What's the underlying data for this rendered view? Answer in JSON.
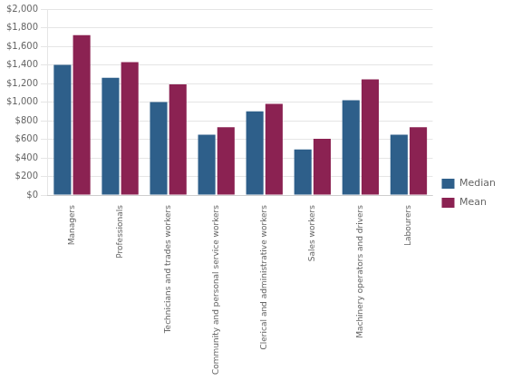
{
  "chart_data": {
    "type": "bar",
    "categories": [
      "Managers",
      "Professionals",
      "Technicians and trades workers",
      "Community and personal service workers",
      "Clerical and administrative workers",
      "Sales workers",
      "Machinery operators and drivers",
      "Labourers"
    ],
    "series": [
      {
        "name": "Median",
        "color": "#2E5F8A",
        "values": [
          1400,
          1260,
          1000,
          650,
          900,
          490,
          1020,
          650
        ]
      },
      {
        "name": "Mean",
        "color": "#8B2252",
        "values": [
          1720,
          1430,
          1190,
          730,
          980,
          605,
          1245,
          730
        ]
      }
    ],
    "ylim": [
      0,
      2000
    ],
    "yticks": [
      {
        "value": 0,
        "label": "$0"
      },
      {
        "value": 200,
        "label": "$200"
      },
      {
        "value": 400,
        "label": "$400"
      },
      {
        "value": 600,
        "label": "$600"
      },
      {
        "value": 800,
        "label": "$800"
      },
      {
        "value": 1000,
        "label": "$1,000"
      },
      {
        "value": 1200,
        "label": "$1,200"
      },
      {
        "value": 1400,
        "label": "$1,400"
      },
      {
        "value": 1600,
        "label": "$1,600"
      },
      {
        "value": 1800,
        "label": "$1,800"
      },
      {
        "value": 2000,
        "label": "$2,000"
      }
    ],
    "grid": true,
    "legend": "right"
  }
}
